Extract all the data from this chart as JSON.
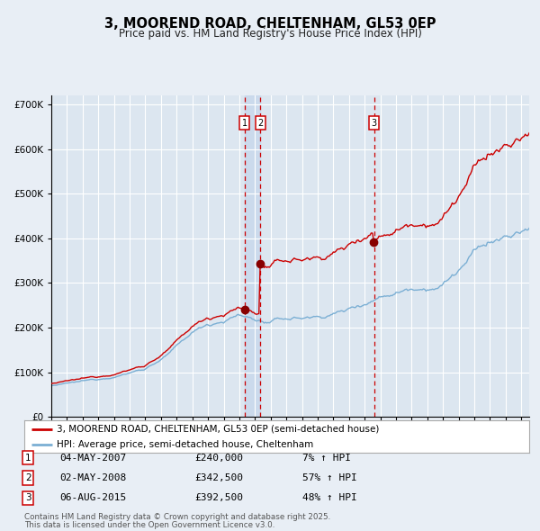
{
  "title": "3, MOOREND ROAD, CHELTENHAM, GL53 0EP",
  "subtitle": "Price paid vs. HM Land Registry's House Price Index (HPI)",
  "legend_line1": "3, MOOREND ROAD, CHELTENHAM, GL53 0EP (semi-detached house)",
  "legend_line2": "HPI: Average price, semi-detached house, Cheltenham",
  "transaction1_date": "04-MAY-2007",
  "transaction1_price": "£240,000",
  "transaction1_hpi": "7% ↑ HPI",
  "transaction1_year": 2007.34,
  "transaction1_value": 240000,
  "transaction2_date": "02-MAY-2008",
  "transaction2_price": "£342,500",
  "transaction2_hpi": "57% ↑ HPI",
  "transaction2_year": 2008.34,
  "transaction2_value": 342500,
  "transaction3_date": "06-AUG-2015",
  "transaction3_price": "£392,500",
  "transaction3_hpi": "48% ↑ HPI",
  "transaction3_year": 2015.6,
  "transaction3_value": 392500,
  "footer_line1": "Contains HM Land Registry data © Crown copyright and database right 2025.",
  "footer_line2": "This data is licensed under the Open Government Licence v3.0.",
  "hpi_color": "#7bafd4",
  "price_color": "#cc0000",
  "bg_color": "#e8eef5",
  "plot_bg_color": "#dce6f0",
  "grid_color": "#ffffff",
  "vline_color": "#cc0000",
  "marker_color": "#880000",
  "highlight_color": "#c8d8ec",
  "ylim": [
    0,
    720000
  ],
  "xlim_start": 1995,
  "xlim_end": 2025.5
}
